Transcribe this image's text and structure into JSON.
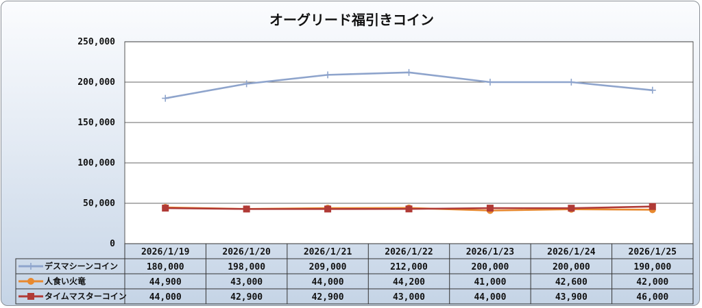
{
  "chart_data": {
    "type": "line",
    "title": "オーグリード福引きコイン",
    "categories": [
      "2026/1/19",
      "2026/1/20",
      "2026/1/21",
      "2026/1/22",
      "2026/1/23",
      "2026/1/24",
      "2026/1/25"
    ],
    "series": [
      {
        "name": "デスマシーンコイン",
        "values": [
          180000,
          198000,
          209000,
          212000,
          200000,
          200000,
          190000
        ],
        "value_labels": [
          "180,000",
          "198,000",
          "209,000",
          "212,000",
          "200,000",
          "200,000",
          "190,000"
        ],
        "color": "#8ea4cc",
        "marker": "plus"
      },
      {
        "name": "人食い火竜",
        "values": [
          44900,
          43000,
          44000,
          44200,
          41000,
          42600,
          42000
        ],
        "value_labels": [
          "44,900",
          "43,000",
          "44,000",
          "44,200",
          "41,000",
          "42,600",
          "42,000"
        ],
        "color": "#e8892f",
        "marker": "circle"
      },
      {
        "name": "タイムマスターコイン",
        "values": [
          44000,
          42900,
          42900,
          43000,
          44000,
          43900,
          46000
        ],
        "value_labels": [
          "44,000",
          "42,900",
          "42,900",
          "43,000",
          "44,000",
          "43,900",
          "46,000"
        ],
        "color": "#b03a36",
        "marker": "square"
      }
    ],
    "yticks": [
      "0",
      "50,000",
      "100,000",
      "150,000",
      "200,000",
      "250,000"
    ],
    "ylim": [
      0,
      250000
    ],
    "grid": true,
    "legend": "data-table"
  }
}
